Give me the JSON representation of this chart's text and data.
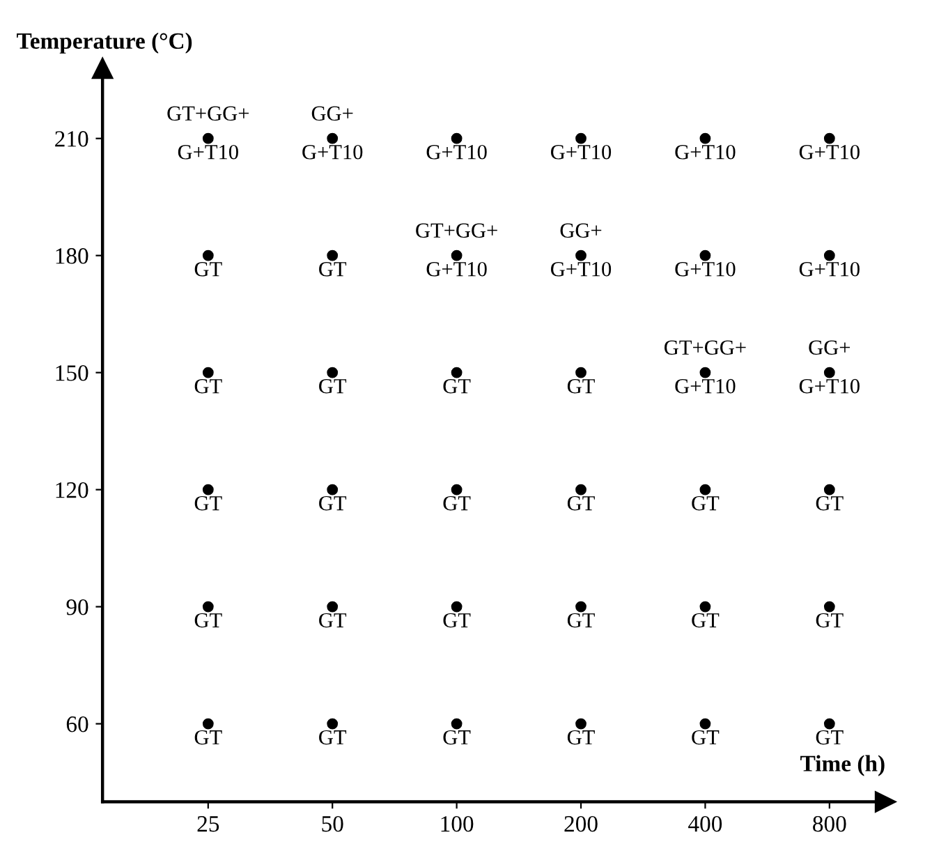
{
  "chart_data": {
    "type": "scatter",
    "xlabel": "Time (h)",
    "ylabel": "Temperature (°C)",
    "categories": [
      "25",
      "50",
      "100",
      "200",
      "400",
      "800"
    ],
    "series": [
      {
        "color": "#000000",
        "values": [
          60,
          60,
          60,
          60,
          60,
          60
        ]
      },
      {
        "color": "#000000",
        "values": [
          90,
          90,
          90,
          90,
          90,
          90
        ]
      },
      {
        "color": "#000000",
        "values": [
          120,
          120,
          120,
          120,
          120,
          120
        ]
      },
      {
        "color": "#000000",
        "values": [
          150,
          150,
          150,
          150,
          150,
          150
        ]
      },
      {
        "color": "#000000",
        "values": [
          180,
          180,
          180,
          180,
          180,
          180
        ]
      },
      {
        "color": "#000000",
        "values": [
          210,
          210,
          210,
          210,
          210,
          210
        ]
      }
    ],
    "ylim": [
      40,
      228
    ],
    "yticks": [
      60,
      90,
      120,
      150,
      180,
      210
    ],
    "marker": "circle",
    "grid": false,
    "legend": false,
    "annotations": [
      {
        "text": "GT",
        "x": "25",
        "y": 60
      },
      {
        "text": "GT",
        "x": "50",
        "y": 60
      },
      {
        "text": "GT",
        "x": "100",
        "y": 60
      },
      {
        "text": "GT",
        "x": "200",
        "y": 60
      },
      {
        "text": "GT",
        "x": "400",
        "y": 60
      },
      {
        "text": "GT",
        "x": "800",
        "y": 60
      },
      {
        "text": "GT",
        "x": "25",
        "y": 90
      },
      {
        "text": "GT",
        "x": "50",
        "y": 90
      },
      {
        "text": "GT",
        "x": "100",
        "y": 90
      },
      {
        "text": "GT",
        "x": "200",
        "y": 90
      },
      {
        "text": "GT",
        "x": "400",
        "y": 90
      },
      {
        "text": "GT",
        "x": "800",
        "y": 90
      },
      {
        "text": "GT",
        "x": "25",
        "y": 120
      },
      {
        "text": "GT",
        "x": "50",
        "y": 120
      },
      {
        "text": "GT",
        "x": "100",
        "y": 120
      },
      {
        "text": "GT",
        "x": "200",
        "y": 120
      },
      {
        "text": "GT",
        "x": "400",
        "y": 120
      },
      {
        "text": "GT",
        "x": "800",
        "y": 120
      },
      {
        "text": "GT",
        "x": "25",
        "y": 150
      },
      {
        "text": "GT",
        "x": "50",
        "y": 150
      },
      {
        "text": "GT",
        "x": "100",
        "y": 150
      },
      {
        "text": "GT",
        "x": "200",
        "y": 150
      },
      {
        "text": "GT+GG+\nG+T10",
        "x": "400",
        "y": 150
      },
      {
        "text": "GG+\nG+T10",
        "x": "800",
        "y": 150
      },
      {
        "text": "GT",
        "x": "25",
        "y": 180
      },
      {
        "text": "GT",
        "x": "50",
        "y": 180
      },
      {
        "text": "GT+GG+\nG+T10",
        "x": "100",
        "y": 180
      },
      {
        "text": "GG+\nG+T10",
        "x": "200",
        "y": 180
      },
      {
        "text": "G+T10",
        "x": "400",
        "y": 180
      },
      {
        "text": "G+T10",
        "x": "800",
        "y": 180
      },
      {
        "text": "GT+GG+\nG+T10",
        "x": "25",
        "y": 210
      },
      {
        "text": "GG+\nG+T10",
        "x": "50",
        "y": 210
      },
      {
        "text": "G+T10",
        "x": "100",
        "y": 210
      },
      {
        "text": "G+T10",
        "x": "200",
        "y": 210
      },
      {
        "text": "G+T10",
        "x": "400",
        "y": 210
      },
      {
        "text": "G+T10",
        "x": "800",
        "y": 210
      }
    ]
  }
}
